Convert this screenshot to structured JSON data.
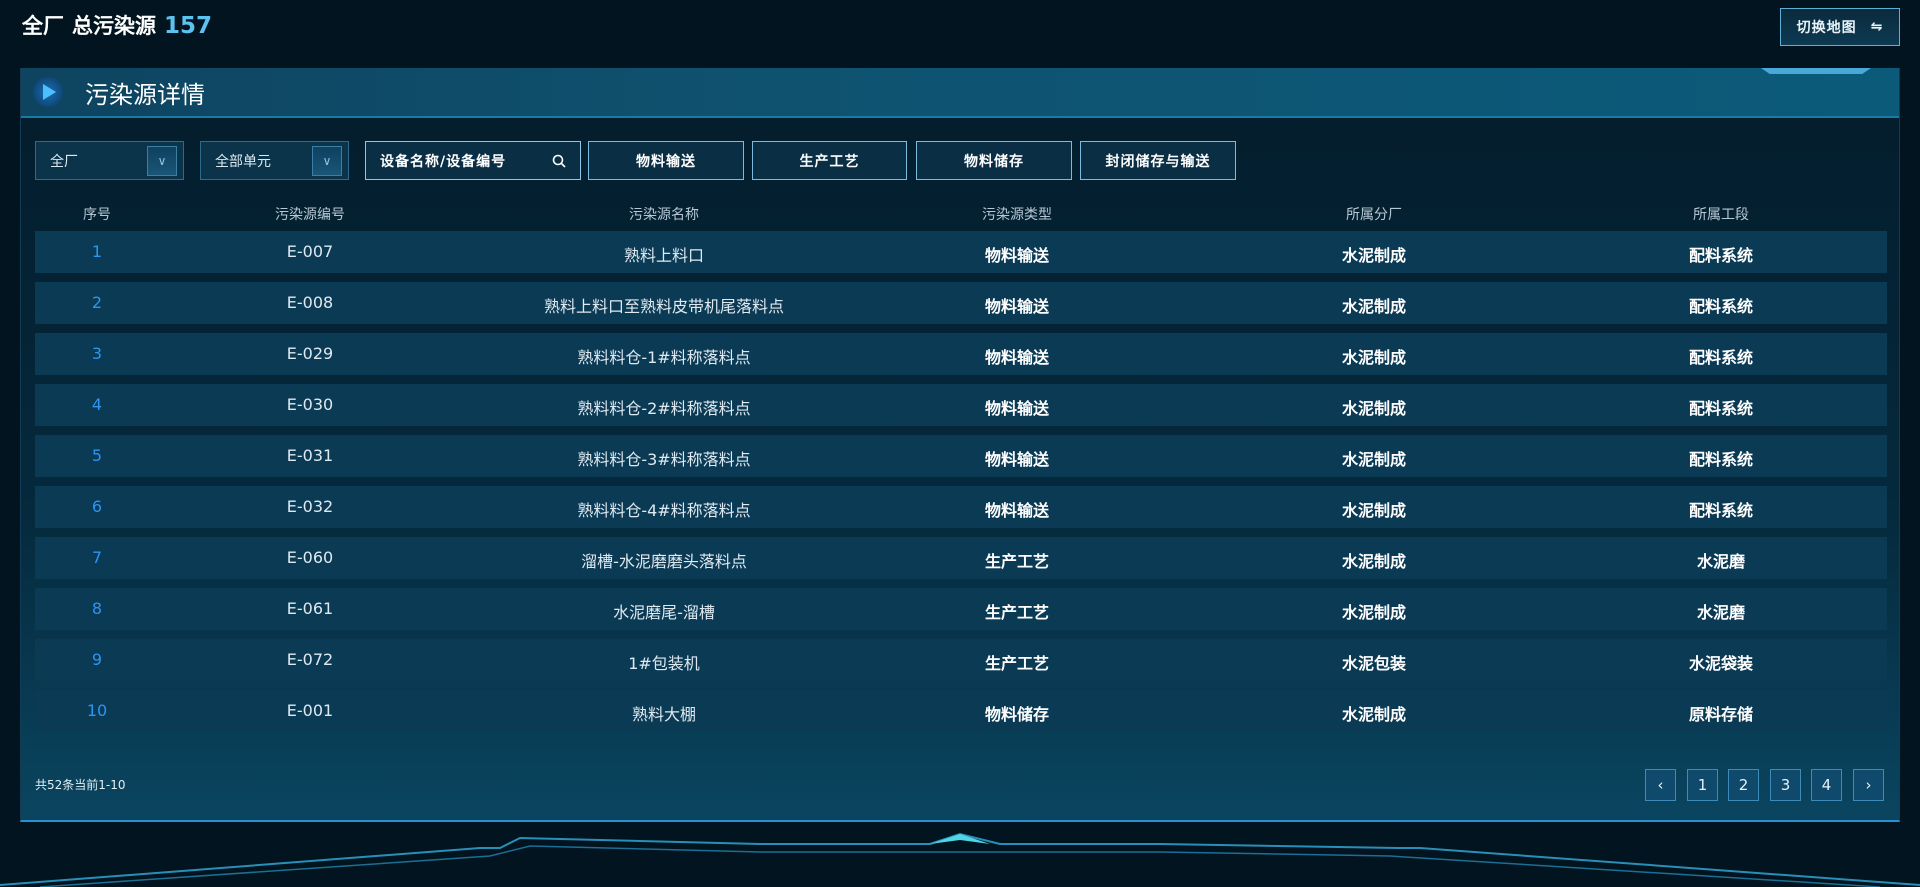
{
  "header": {
    "scope": "全厂",
    "label": "总污染源",
    "count": "157",
    "switch_label": "切换地图",
    "switch_icon": "swap-arrows-icon"
  },
  "panel": {
    "title": "污染源详情"
  },
  "filters": {
    "plant": "全厂",
    "unit": "全部单元",
    "search_placeholder": "设备名称/设备编号",
    "categories": [
      "物料输送",
      "生产工艺",
      "物料储存",
      "封闭储存与输送"
    ]
  },
  "table": {
    "columns": [
      "序号",
      "污染源编号",
      "污染源名称",
      "污染源类型",
      "所属分厂",
      "所属工段"
    ],
    "rows": [
      [
        "1",
        "E-007",
        "熟料上料口",
        "物料输送",
        "水泥制成",
        "配料系统"
      ],
      [
        "2",
        "E-008",
        "熟料上料口至熟料皮带机尾落料点",
        "物料输送",
        "水泥制成",
        "配料系统"
      ],
      [
        "3",
        "E-029",
        "熟料料仓-1#料称落料点",
        "物料输送",
        "水泥制成",
        "配料系统"
      ],
      [
        "4",
        "E-030",
        "熟料料仓-2#料称落料点",
        "物料输送",
        "水泥制成",
        "配料系统"
      ],
      [
        "5",
        "E-031",
        "熟料料仓-3#料称落料点",
        "物料输送",
        "水泥制成",
        "配料系统"
      ],
      [
        "6",
        "E-032",
        "熟料料仓-4#料称落料点",
        "物料输送",
        "水泥制成",
        "配料系统"
      ],
      [
        "7",
        "E-060",
        "溜槽-水泥磨磨头落料点",
        "生产工艺",
        "水泥制成",
        "水泥磨"
      ],
      [
        "8",
        "E-061",
        "水泥磨尾-溜槽",
        "生产工艺",
        "水泥制成",
        "水泥磨"
      ],
      [
        "9",
        "E-072",
        "1#包装机",
        "生产工艺",
        "水泥包装",
        "水泥袋装"
      ],
      [
        "10",
        "E-001",
        "熟料大棚",
        "物料储存",
        "水泥制成",
        "原料存储"
      ]
    ]
  },
  "pagination": {
    "summary": "共52条当前1-10",
    "prev": "‹",
    "pages": [
      "1",
      "2",
      "3",
      "4"
    ],
    "next": "›"
  }
}
